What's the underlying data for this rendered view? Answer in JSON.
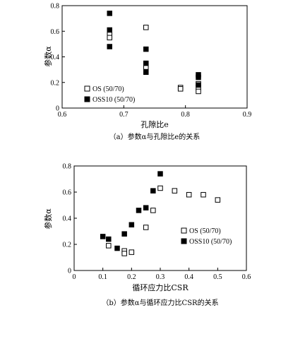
{
  "chart_data": [
    {
      "type": "scatter",
      "xlabel": "孔隙比e",
      "ylabel": "参数α",
      "caption": "（a）参数α与孔隙比e的关系",
      "xlim": [
        0.6,
        0.9
      ],
      "ylim": [
        0,
        0.8
      ],
      "x_ticks": [
        "0.6",
        "0.7",
        "0.8",
        "0.9"
      ],
      "y_ticks": [
        "0",
        "0.2",
        "0.4",
        "0.6",
        "0.8"
      ],
      "grid": false,
      "legend_position": "bottom-left",
      "series": [
        {
          "name": "OS (50/70)",
          "marker": "open-square",
          "points": [
            [
              0.677,
              0.58
            ],
            [
              0.677,
              0.55
            ],
            [
              0.736,
              0.63
            ],
            [
              0.736,
              0.34
            ],
            [
              0.736,
              0.32
            ],
            [
              0.792,
              0.16
            ],
            [
              0.792,
              0.15
            ],
            [
              0.821,
              0.19
            ],
            [
              0.821,
              0.16
            ],
            [
              0.821,
              0.13
            ]
          ]
        },
        {
          "name": "OSS10 (50/70)",
          "marker": "filled-square",
          "points": [
            [
              0.677,
              0.74
            ],
            [
              0.677,
              0.61
            ],
            [
              0.677,
              0.48
            ],
            [
              0.736,
              0.46
            ],
            [
              0.736,
              0.35
            ],
            [
              0.736,
              0.28
            ],
            [
              0.821,
              0.26
            ],
            [
              0.821,
              0.24
            ],
            [
              0.821,
              0.18
            ]
          ]
        }
      ]
    },
    {
      "type": "scatter",
      "xlabel": "循环应力比CSR",
      "ylabel": "参数α",
      "caption": "（b）参数α与循环应力比CSR的关系",
      "xlim": [
        0,
        0.6
      ],
      "ylim": [
        0,
        0.8
      ],
      "x_ticks": [
        "0",
        "0.1",
        "0.2",
        "0.3",
        "0.4",
        "0.5",
        "0.6"
      ],
      "y_ticks": [
        "0",
        "0.2",
        "0.4",
        "0.6",
        "0.8"
      ],
      "grid": false,
      "legend_position": "center-right",
      "series": [
        {
          "name": "OS (50/70)",
          "marker": "open-square",
          "points": [
            [
              0.12,
              0.19
            ],
            [
              0.175,
              0.15
            ],
            [
              0.175,
              0.13
            ],
            [
              0.2,
              0.14
            ],
            [
              0.25,
              0.33
            ],
            [
              0.275,
              0.46
            ],
            [
              0.3,
              0.63
            ],
            [
              0.35,
              0.61
            ],
            [
              0.4,
              0.58
            ],
            [
              0.45,
              0.58
            ],
            [
              0.5,
              0.54
            ]
          ]
        },
        {
          "name": "OSS10 (50/70)",
          "marker": "filled-square",
          "points": [
            [
              0.1,
              0.26
            ],
            [
              0.12,
              0.24
            ],
            [
              0.15,
              0.17
            ],
            [
              0.175,
              0.28
            ],
            [
              0.2,
              0.35
            ],
            [
              0.225,
              0.46
            ],
            [
              0.25,
              0.48
            ],
            [
              0.275,
              0.61
            ],
            [
              0.3,
              0.74
            ]
          ]
        }
      ]
    }
  ]
}
